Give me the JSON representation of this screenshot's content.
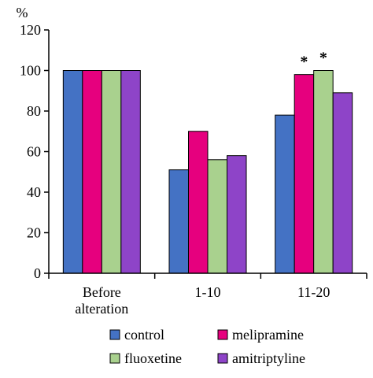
{
  "chart_data": {
    "type": "bar",
    "ylabel": "%",
    "ylim": [
      0,
      120
    ],
    "yticks": [
      0,
      20,
      40,
      60,
      80,
      100,
      120
    ],
    "categories": [
      [
        "Before",
        "alteration"
      ],
      [
        "1-10"
      ],
      [
        "11-20"
      ]
    ],
    "series": [
      {
        "name": "control",
        "color": "#4472C4",
        "values": [
          100,
          51,
          78
        ]
      },
      {
        "name": "melipramine",
        "color": "#E6007E",
        "values": [
          100,
          70,
          98
        ]
      },
      {
        "name": "fluoxetine",
        "color": "#A9D18E",
        "values": [
          100,
          56,
          100
        ]
      },
      {
        "name": "amitriptyline",
        "color": "#8E44C8",
        "values": [
          100,
          58,
          89
        ]
      }
    ],
    "annotations": [
      {
        "category": 2,
        "series": 1,
        "text": "*"
      },
      {
        "category": 2,
        "series": 2,
        "text": "*"
      }
    ],
    "legend": "bottom",
    "grid": false
  }
}
